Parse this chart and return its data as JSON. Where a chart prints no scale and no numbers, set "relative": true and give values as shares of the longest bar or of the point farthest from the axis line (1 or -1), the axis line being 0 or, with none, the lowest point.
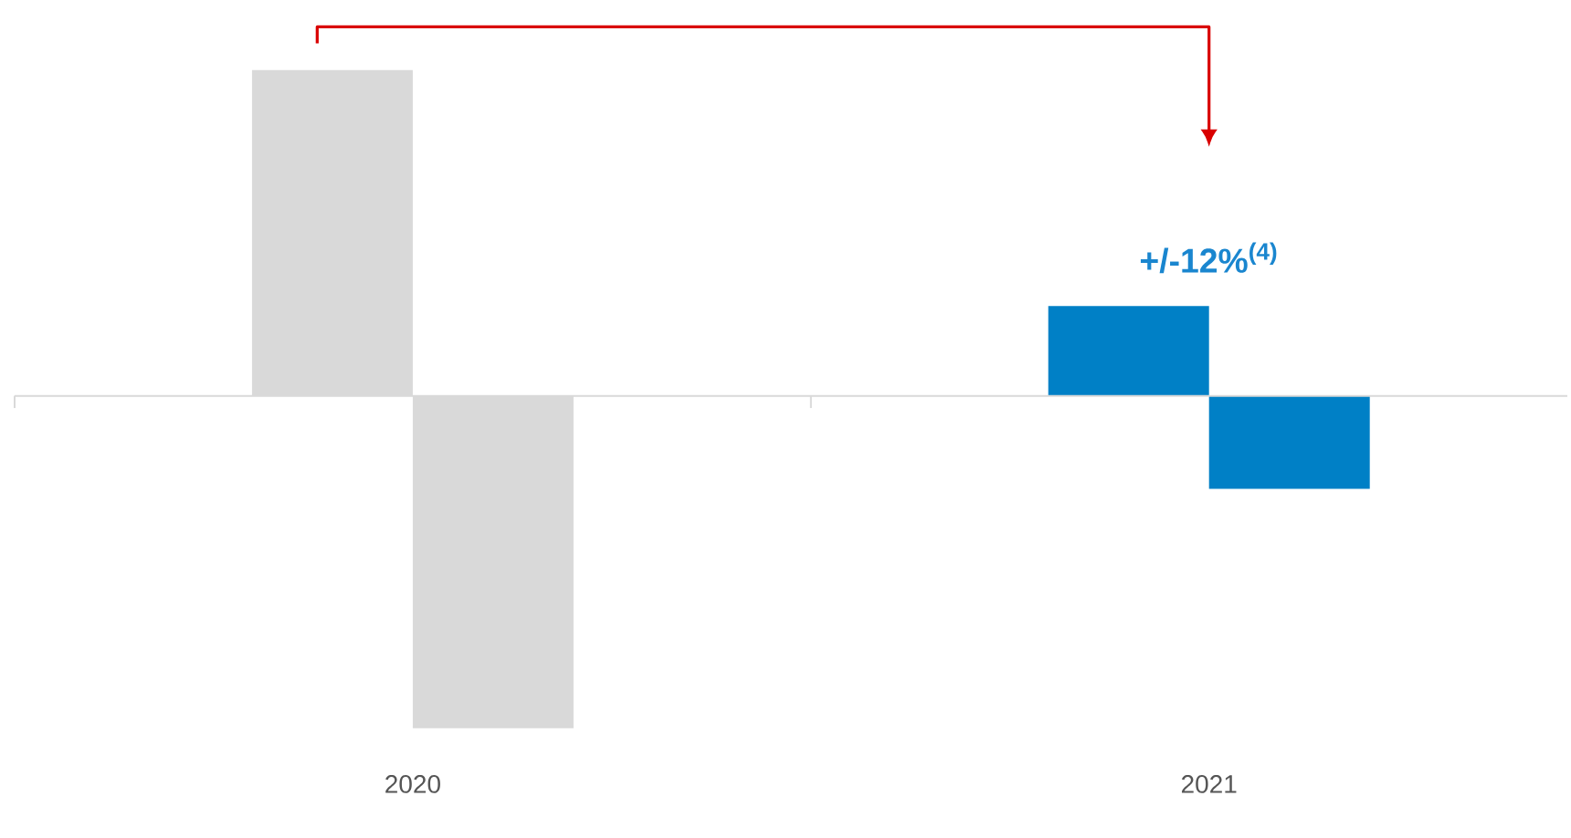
{
  "chart_data": {
    "type": "bar",
    "relative": true,
    "categories": [
      "2020",
      "2021"
    ],
    "series": [
      {
        "values": [
          0.98,
          0.27
        ],
        "colors": [
          "#d9d9d9",
          "#0080c6"
        ]
      },
      {
        "values": [
          -1,
          -0.28
        ],
        "colors": [
          "#d9d9d9",
          "#0080c6"
        ]
      }
    ],
    "annotations": [
      {
        "text": "+/-12%$^{(4)}$",
        "x": "2021",
        "y": 0.27
      }
    ]
  }
}
